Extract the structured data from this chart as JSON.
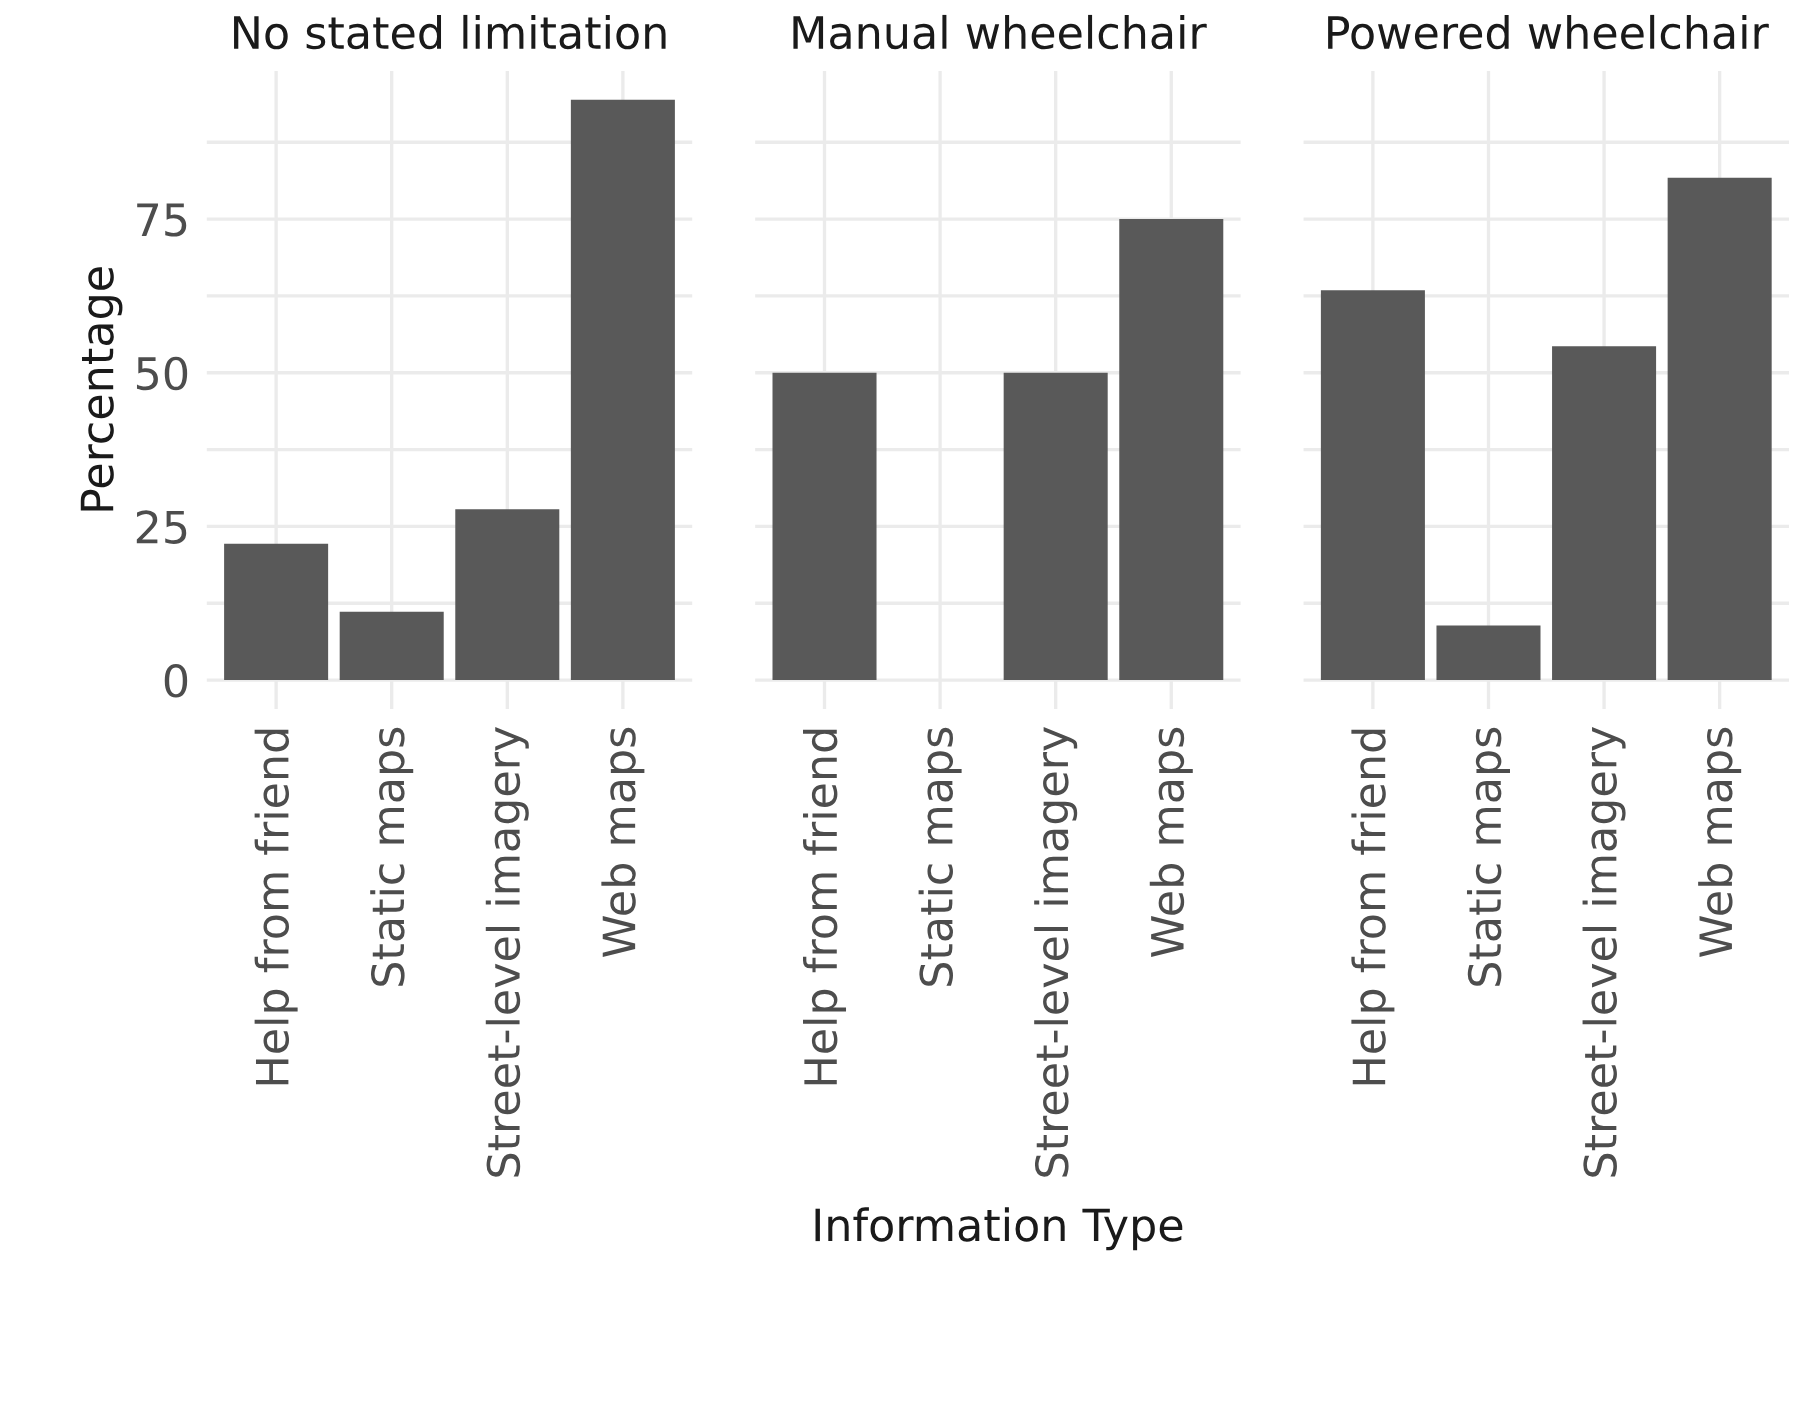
{
  "chart_data": [
    {
      "type": "bar",
      "title": "No stated limitation",
      "ylabel": "Percentage",
      "categories": [
        "Help from friend",
        "Static maps",
        "Street-level imagery",
        "Web maps"
      ],
      "values": [
        22.2,
        11.1,
        27.8,
        94.4
      ],
      "color": "#595959",
      "ylim": [
        -4.7,
        99.1
      ],
      "yticks": [
        0,
        {
          "value": 12.5,
          "label": null
        },
        25,
        {
          "value": 37.5,
          "label": null
        },
        50,
        {
          "value": 62.5,
          "label": null
        },
        75,
        {
          "value": 87.5,
          "label": null
        }
      ],
      "grid": true
    },
    {
      "type": "bar",
      "title": "Manual wheelchair",
      "xlabel": "Information Type",
      "categories": [
        "Help from friend",
        "Static maps",
        "Street-level imagery",
        "Web maps"
      ],
      "values": [
        50,
        0,
        50,
        75
      ],
      "color": "#595959",
      "ylim": [
        -4.7,
        99.1
      ],
      "yticks": [
        0,
        {
          "value": 12.5,
          "label": null
        },
        25,
        {
          "value": 37.5,
          "label": null
        },
        50,
        {
          "value": 62.5,
          "label": null
        },
        75,
        {
          "value": 87.5,
          "label": null
        }
      ],
      "grid": true,
      "tick_labels": "x"
    },
    {
      "type": "bar",
      "title": "Powered wheelchair",
      "categories": [
        "Help from friend",
        "Static maps",
        "Street-level imagery",
        "Web maps"
      ],
      "values": [
        63.4,
        8.9,
        54.3,
        81.7
      ],
      "color": "#595959",
      "ylim": [
        -4.7,
        99.1
      ],
      "yticks": [
        0,
        {
          "value": 12.5,
          "label": null
        },
        25,
        {
          "value": 37.5,
          "label": null
        },
        50,
        {
          "value": 62.5,
          "label": null
        },
        75,
        {
          "value": 87.5,
          "label": null
        }
      ],
      "grid": true,
      "tick_labels": "x"
    }
  ]
}
